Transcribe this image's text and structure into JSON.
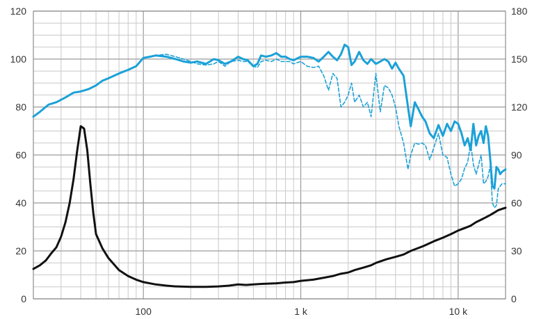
{
  "chart_data": {
    "type": "line",
    "title": "",
    "xlabel": "",
    "ylabel": "",
    "y2label": "",
    "x_scale": "log",
    "xlim": [
      20,
      20000
    ],
    "ylim": [
      0,
      120
    ],
    "y2lim": [
      0,
      180
    ],
    "grid": true,
    "legend": "none",
    "x_tick_values": [
      100,
      1000,
      10000
    ],
    "x_tick_labels": [
      "100",
      "1 k",
      "10 k"
    ],
    "y_tick_values": [
      0,
      20,
      40,
      60,
      80,
      100,
      120
    ],
    "y_tick_labels": [
      "0",
      "20",
      "40",
      "60",
      "80",
      "100",
      "120"
    ],
    "y2_tick_values": [
      0,
      30,
      60,
      90,
      120,
      150,
      180
    ],
    "y2_tick_labels": [
      "0",
      "30",
      "60",
      "90",
      "120",
      "150",
      "180"
    ],
    "colors": {
      "spl": "#1ba1d8",
      "impedance": "#111111",
      "grid": "#c8c8c8",
      "axis": "#8c8c8c"
    },
    "series": [
      {
        "style": "solid",
        "axis": "left",
        "color": "#1ba1d8",
        "x": [
          20,
          22,
          25,
          28,
          32,
          36,
          40,
          45,
          50,
          55,
          60,
          70,
          80,
          90,
          100,
          110,
          120,
          140,
          160,
          180,
          200,
          220,
          250,
          280,
          300,
          330,
          360,
          400,
          430,
          460,
          500,
          530,
          560,
          600,
          650,
          700,
          750,
          800,
          850,
          900,
          1000,
          1100,
          1200,
          1300,
          1400,
          1500,
          1600,
          1700,
          1800,
          1900,
          2000,
          2100,
          2200,
          2350,
          2500,
          2650,
          2800,
          3000,
          3200,
          3400,
          3600,
          3800,
          4000,
          4200,
          4500,
          4800,
          5000,
          5300,
          5600,
          5900,
          6200,
          6600,
          7000,
          7500,
          8000,
          8500,
          9000,
          9500,
          10000,
          10500,
          11000,
          11500,
          12000,
          12500,
          13000,
          13500,
          14000,
          14500,
          15000,
          15500,
          16000,
          16500,
          17000,
          17500,
          18000,
          18500,
          19000,
          20000
        ],
        "y": [
          76,
          78,
          81,
          82,
          84,
          86,
          86.5,
          87.5,
          89,
          91,
          92,
          94,
          95.5,
          97,
          100.5,
          101,
          101.5,
          101,
          100,
          99,
          98.5,
          99,
          98,
          100,
          99.5,
          98,
          99,
          101,
          100,
          99.5,
          97,
          98,
          101.5,
          101,
          101.5,
          102.5,
          101,
          101,
          100,
          99.5,
          101,
          101,
          100.5,
          99,
          101,
          103,
          101,
          99.5,
          102,
          106,
          105,
          97.5,
          99,
          103,
          99.5,
          98,
          100,
          98,
          99,
          100,
          99,
          96,
          98.5,
          96,
          93,
          80,
          72,
          82,
          79,
          76,
          74,
          69,
          67,
          72.5,
          68,
          73,
          70,
          74,
          73,
          69,
          64,
          67,
          62,
          73,
          64,
          68,
          70,
          65,
          72,
          68,
          58,
          47,
          46,
          55,
          54,
          52,
          53,
          54
        ]
      },
      {
        "style": "dashed",
        "axis": "left",
        "color": "#1ba1d8",
        "x": [
          100,
          110,
          120,
          140,
          160,
          180,
          200,
          220,
          250,
          280,
          300,
          330,
          360,
          400,
          430,
          460,
          500,
          530,
          560,
          600,
          650,
          700,
          750,
          800,
          850,
          900,
          1000,
          1100,
          1200,
          1300,
          1400,
          1500,
          1600,
          1700,
          1800,
          1900,
          2000,
          2100,
          2200,
          2350,
          2500,
          2650,
          2800,
          3000,
          3200,
          3400,
          3600,
          3800,
          4000,
          4200,
          4500,
          4800,
          5000,
          5300,
          5600,
          5900,
          6200,
          6600,
          7000,
          7500,
          8000,
          8500,
          9000,
          9500,
          10000,
          10500,
          11000,
          11500,
          12000,
          12500,
          13000,
          13500,
          14000,
          14500,
          15000,
          15500,
          16000,
          16500,
          17000,
          17500,
          18000,
          18500,
          19000,
          20000
        ],
        "y": [
          100.5,
          101,
          101.5,
          102,
          101,
          100,
          99,
          98,
          97.5,
          98,
          99,
          97,
          99,
          99.5,
          99,
          99,
          97,
          96.5,
          99,
          99.5,
          99,
          100,
          99,
          99,
          99,
          98,
          99,
          97,
          96.5,
          97,
          93,
          87,
          94,
          92,
          80,
          82,
          85,
          90,
          82,
          85,
          80,
          82,
          76,
          94,
          78,
          89,
          88,
          85,
          80,
          72,
          65,
          54,
          60,
          65,
          64.5,
          65,
          64,
          58,
          63,
          69,
          60,
          59,
          52,
          47,
          48,
          50,
          54.5,
          57,
          65,
          56,
          52,
          56,
          60,
          48,
          49,
          51,
          55.5,
          40,
          38,
          39,
          46,
          47,
          48,
          48
        ]
      },
      {
        "style": "solid",
        "axis": "left",
        "color": "#111111",
        "x": [
          20,
          22,
          24,
          26,
          28,
          30,
          32,
          34,
          36,
          38,
          40,
          42,
          44,
          46,
          48,
          50,
          55,
          60,
          70,
          80,
          90,
          100,
          120,
          140,
          160,
          200,
          250,
          300,
          350,
          400,
          450,
          500,
          550,
          600,
          700,
          800,
          900,
          1000,
          1200,
          1400,
          1600,
          1800,
          2000,
          2200,
          2500,
          2800,
          3000,
          3500,
          4000,
          4500,
          5000,
          6000,
          7000,
          8000,
          9000,
          10000,
          11000,
          12000,
          13000,
          14000,
          15000,
          16000,
          17000,
          18000,
          19000,
          20000
        ],
        "y": [
          12.5,
          14,
          16,
          19,
          21.5,
          26,
          32,
          40,
          50,
          62,
          72,
          71,
          62,
          48,
          36,
          27,
          21,
          17,
          12,
          9.5,
          8,
          7,
          6,
          5.5,
          5.2,
          5,
          5,
          5.2,
          5.5,
          6,
          5.8,
          6,
          6.2,
          6.3,
          6.5,
          6.8,
          7,
          7.5,
          8,
          8.8,
          9.5,
          10.5,
          11,
          12,
          13,
          14,
          15,
          16.5,
          17.5,
          18.5,
          20,
          22,
          24,
          25.5,
          27,
          28.5,
          29.5,
          30.5,
          32,
          33,
          34,
          35,
          36,
          37,
          37.5,
          38
        ]
      }
    ]
  }
}
